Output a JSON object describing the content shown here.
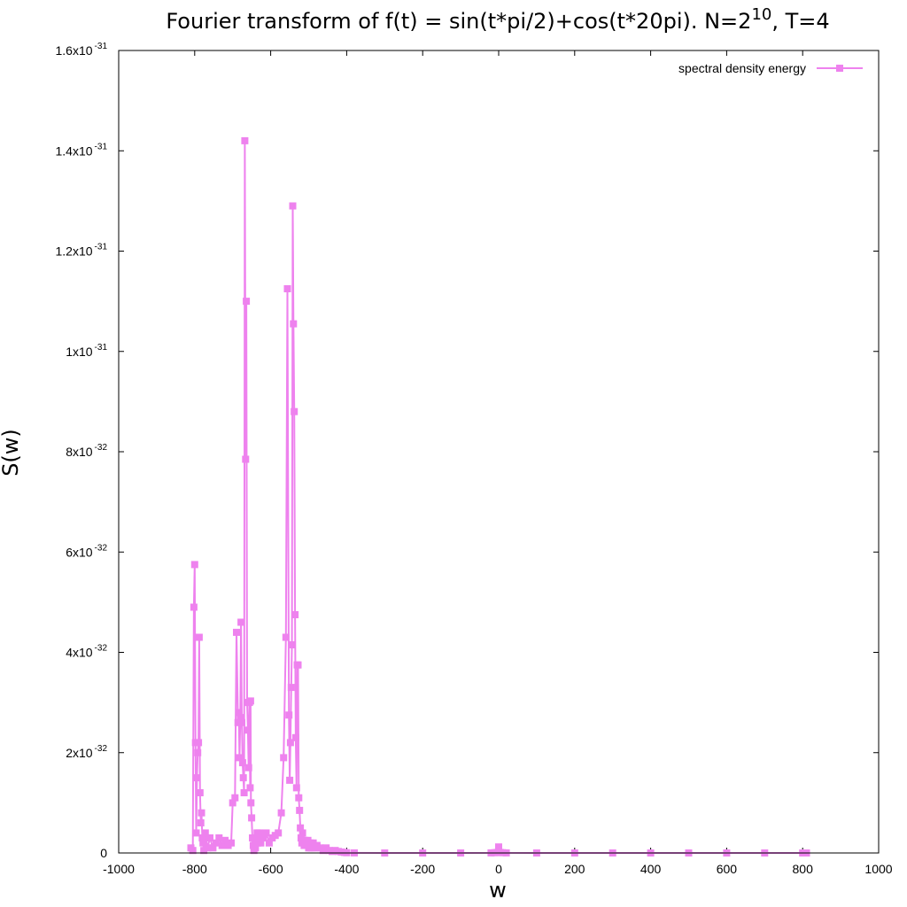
{
  "chart_data": {
    "type": "line",
    "title": {
      "main": "Fourier transform of f(t) = sin(t*pi/2)+cos(t*20pi). N=2",
      "exponent": "10",
      "suffix": ", T=4"
    },
    "xlabel": "w",
    "ylabel": "S(w)",
    "xlim": [
      -1000,
      1000
    ],
    "ylim": [
      0,
      1.6e-31
    ],
    "x_ticks": [
      {
        "value": -1000,
        "label": "-1000"
      },
      {
        "value": -800,
        "label": "-800"
      },
      {
        "value": -600,
        "label": "-600"
      },
      {
        "value": -400,
        "label": "-400"
      },
      {
        "value": -200,
        "label": "-200"
      },
      {
        "value": 0,
        "label": "0"
      },
      {
        "value": 200,
        "label": "200"
      },
      {
        "value": 400,
        "label": "400"
      },
      {
        "value": 600,
        "label": "600"
      },
      {
        "value": 800,
        "label": "800"
      },
      {
        "value": 1000,
        "label": "1000"
      }
    ],
    "y_ticks": [
      {
        "value": 0,
        "mant": "0",
        "exp": ""
      },
      {
        "value": 2e-32,
        "mant": "2x10",
        "exp": "-32"
      },
      {
        "value": 4e-32,
        "mant": "4x10",
        "exp": "-32"
      },
      {
        "value": 6e-32,
        "mant": "6x10",
        "exp": "-32"
      },
      {
        "value": 8e-32,
        "mant": "8x10",
        "exp": "-32"
      },
      {
        "value": 1e-31,
        "mant": "1x10",
        "exp": "-31"
      },
      {
        "value": 1.2e-31,
        "mant": "1.2x10",
        "exp": "-31"
      },
      {
        "value": 1.4e-31,
        "mant": "1.4x10",
        "exp": "-31"
      },
      {
        "value": 1.6e-31,
        "mant": "1.6x10",
        "exp": "-31"
      }
    ],
    "legend": {
      "position": "top-right"
    },
    "series": [
      {
        "name": "spectral density energy",
        "color": "#ee82ee",
        "marker": "square",
        "x": [
          -810,
          -805,
          -802,
          -800,
          -798,
          -796,
          -794,
          -792,
          -790,
          -788,
          -786,
          -784,
          -782,
          -780,
          -778,
          -776,
          -772,
          -766,
          -760,
          -752,
          -744,
          -736,
          -728,
          -720,
          -712,
          -704,
          -700,
          -694,
          -690,
          -686,
          -684,
          -682,
          -680,
          -678,
          -676,
          -674,
          -672,
          -670,
          -668,
          -666,
          -664,
          -662,
          -660,
          -658,
          -656,
          -654,
          -653,
          -652,
          -650,
          -648,
          -646,
          -644,
          -642,
          -640,
          -638,
          -636,
          -634,
          -632,
          -630,
          -626,
          -620,
          -612,
          -604,
          -596,
          -588,
          -580,
          -572,
          -566,
          -560,
          -556,
          -552,
          -550,
          -548,
          -546,
          -544,
          -542,
          -540,
          -538,
          -536,
          -534,
          -532,
          -530,
          -528,
          -526,
          -524,
          -522,
          -520,
          -518,
          -516,
          -514,
          -512,
          -510,
          -508,
          -506,
          -504,
          -502,
          -500,
          -498,
          -496,
          -494,
          -492,
          -490,
          -488,
          -484,
          -478,
          -470,
          -462,
          -454,
          -446,
          -438,
          -430,
          -422,
          -414,
          -406,
          -400,
          -380,
          -300,
          -200,
          -100,
          -20,
          -10,
          -4,
          0,
          4,
          10,
          20,
          100,
          200,
          300,
          400,
          500,
          600,
          700,
          800,
          810
        ],
        "values": [
          1e-33,
          5e-34,
          4.9e-32,
          5.75e-32,
          2.2e-32,
          4e-33,
          1.5e-32,
          2e-32,
          2.2e-32,
          4.3e-32,
          1.2e-32,
          6e-33,
          8e-33,
          3e-33,
          2e-33,
          5e-34,
          4e-33,
          1e-33,
          3e-33,
          1e-33,
          2e-33,
          3e-33,
          1.5e-33,
          2.5e-33,
          1.5e-33,
          2e-33,
          1e-32,
          1.1e-32,
          4.4e-32,
          2.6e-32,
          2.8e-32,
          1.9e-32,
          2.7e-32,
          4.6e-32,
          2.6e-32,
          1.8e-32,
          1.5e-32,
          1.2e-32,
          1.42e-31,
          7.85e-32,
          1.1e-31,
          3e-32,
          2.45e-32,
          1.7e-32,
          3e-32,
          1.3e-32,
          3.03e-32,
          1e-32,
          7e-33,
          3e-33,
          1.5e-33,
          5e-34,
          2e-33,
          1e-33,
          3e-33,
          4e-33,
          2e-33,
          3e-33,
          4e-33,
          2e-33,
          3e-33,
          4e-33,
          2e-33,
          3e-33,
          3.5e-33,
          4e-33,
          8e-33,
          1.9e-32,
          4.3e-32,
          1.125e-31,
          2.75e-32,
          1.45e-32,
          2.2e-32,
          3.3e-32,
          4.15e-32,
          1.29e-31,
          1.055e-31,
          8.8e-32,
          4.75e-32,
          2.3e-32,
          1.3e-32,
          3.75e-32,
          3.75e-32,
          1.1e-32,
          8.5e-33,
          5e-33,
          3e-33,
          2e-33,
          4e-33,
          2.5e-33,
          1.5e-33,
          2.5e-33,
          2e-33,
          1.5e-33,
          2e-33,
          2.5e-33,
          1e-33,
          1.5e-33,
          2e-33,
          1e-33,
          1.5e-33,
          1e-33,
          2e-33,
          1e-33,
          1.5e-33,
          1e-33,
          5e-34,
          1e-33,
          5e-34,
          3e-34,
          5e-34,
          3e-34,
          2e-34,
          1e-34,
          5e-35,
          2e-35,
          0,
          0,
          0,
          1e-35,
          5e-35,
          1e-34,
          1.2e-33,
          1e-34,
          5e-35,
          1e-35,
          0,
          0,
          0,
          0,
          0,
          0,
          0,
          0,
          0
        ]
      }
    ]
  }
}
